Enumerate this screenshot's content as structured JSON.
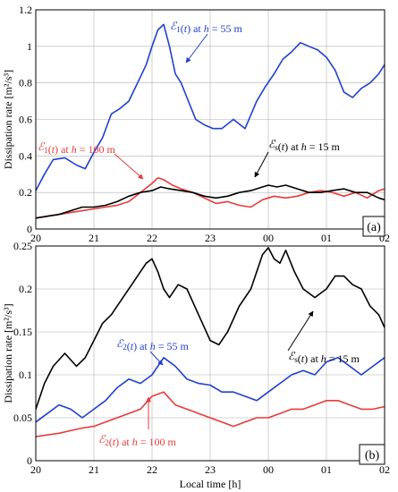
{
  "chart_data": [
    {
      "type": "line",
      "panel_label": "(a)",
      "ylabel": "Dissipation rate [m²/s³]",
      "x_ticks": [
        "20",
        "21",
        "22",
        "23",
        "00",
        "01",
        "02"
      ],
      "xlim": [
        20,
        26
      ],
      "ylim": [
        0,
        1.2
      ],
      "y_ticks": [
        "0",
        "0.2",
        "0.4",
        "0.6",
        "0.8",
        "1",
        "1.2"
      ],
      "grid": true,
      "series": [
        {
          "color": "#1f3fcf",
          "x": [
            20.0,
            20.15,
            20.3,
            20.5,
            20.7,
            20.85,
            21.0,
            21.15,
            21.3,
            21.45,
            21.6,
            21.75,
            21.9,
            22.0,
            22.1,
            22.2,
            22.3,
            22.4,
            22.5,
            22.6,
            22.75,
            22.9,
            23.05,
            23.2,
            23.4,
            23.6,
            23.8,
            23.95,
            24.1,
            24.25,
            24.4,
            24.55,
            24.7,
            24.85,
            25.0,
            25.15,
            25.3,
            25.45,
            25.6,
            25.75,
            25.9,
            26.0
          ],
          "y": [
            0.21,
            0.3,
            0.38,
            0.39,
            0.35,
            0.33,
            0.42,
            0.5,
            0.63,
            0.66,
            0.7,
            0.8,
            0.9,
            1.0,
            1.09,
            1.12,
            1.0,
            0.85,
            0.8,
            0.72,
            0.6,
            0.57,
            0.55,
            0.55,
            0.6,
            0.55,
            0.7,
            0.78,
            0.85,
            0.93,
            0.97,
            1.02,
            1.0,
            0.98,
            0.94,
            0.87,
            0.75,
            0.72,
            0.77,
            0.8,
            0.85,
            0.9
          ]
        },
        {
          "color": "#e83a3a",
          "x": [
            20.0,
            20.2,
            20.4,
            20.6,
            20.8,
            21.0,
            21.2,
            21.4,
            21.6,
            21.8,
            22.0,
            22.1,
            22.2,
            22.35,
            22.5,
            22.7,
            22.9,
            23.1,
            23.3,
            23.5,
            23.7,
            23.9,
            24.1,
            24.3,
            24.5,
            24.7,
            24.9,
            25.1,
            25.3,
            25.5,
            25.7,
            25.9,
            26.0
          ],
          "y": [
            0.06,
            0.07,
            0.08,
            0.09,
            0.1,
            0.11,
            0.12,
            0.13,
            0.15,
            0.2,
            0.25,
            0.28,
            0.27,
            0.24,
            0.22,
            0.2,
            0.17,
            0.14,
            0.15,
            0.13,
            0.12,
            0.16,
            0.18,
            0.17,
            0.18,
            0.2,
            0.21,
            0.2,
            0.18,
            0.2,
            0.17,
            0.21,
            0.22
          ]
        },
        {
          "color": "#000000",
          "x": [
            20.0,
            20.2,
            20.4,
            20.6,
            20.8,
            21.0,
            21.2,
            21.4,
            21.6,
            21.8,
            22.0,
            22.15,
            22.3,
            22.5,
            22.7,
            22.9,
            23.1,
            23.3,
            23.5,
            23.7,
            23.9,
            24.0,
            24.15,
            24.3,
            24.5,
            24.7,
            24.9,
            25.1,
            25.3,
            25.5,
            25.7,
            25.9,
            26.0
          ],
          "y": [
            0.06,
            0.07,
            0.08,
            0.1,
            0.12,
            0.12,
            0.13,
            0.15,
            0.18,
            0.2,
            0.21,
            0.23,
            0.22,
            0.21,
            0.2,
            0.18,
            0.17,
            0.18,
            0.2,
            0.21,
            0.23,
            0.24,
            0.23,
            0.24,
            0.22,
            0.2,
            0.2,
            0.21,
            0.22,
            0.2,
            0.2,
            0.17,
            0.16
          ]
        }
      ],
      "annotations": [
        {
          "prefix": "ℰ",
          "sub": "1",
          "mid": "(",
          "italic": "t",
          "rest": ") at ",
          "h": "h",
          "eq": " = 55 m",
          "color": "#1f3fcf"
        },
        {
          "prefix": "ℰ",
          "sub": "1",
          "mid": "(",
          "italic": "t",
          "rest": ") at ",
          "h": "h",
          "eq": " = 100 m",
          "color": "#e83a3a"
        },
        {
          "prefix": "ℰ",
          "sub": "s",
          "mid": "(",
          "italic": "t",
          "rest": ") at ",
          "h": "h",
          "eq": " = 15 m",
          "color": "#000000"
        }
      ]
    },
    {
      "type": "line",
      "panel_label": "(b)",
      "ylabel": "Dissipation rate [m²/s³]",
      "xlabel": "Local time [h]",
      "x_ticks": [
        "20",
        "21",
        "22",
        "23",
        "00",
        "01",
        "02"
      ],
      "xlim": [
        20,
        26
      ],
      "ylim": [
        0,
        0.25
      ],
      "y_ticks": [
        "0",
        "0.05",
        "0.1",
        "0.15",
        "0.2",
        "0.25"
      ],
      "grid": true,
      "series": [
        {
          "color": "#000000",
          "x": [
            20.0,
            20.15,
            20.3,
            20.5,
            20.7,
            20.85,
            21.0,
            21.15,
            21.3,
            21.5,
            21.7,
            21.9,
            22.0,
            22.1,
            22.2,
            22.3,
            22.45,
            22.6,
            22.8,
            23.0,
            23.15,
            23.3,
            23.5,
            23.7,
            23.9,
            24.0,
            24.1,
            24.2,
            24.3,
            24.45,
            24.6,
            24.8,
            25.0,
            25.15,
            25.3,
            25.45,
            25.6,
            25.75,
            25.9,
            26.0
          ],
          "y": [
            0.06,
            0.09,
            0.11,
            0.125,
            0.11,
            0.12,
            0.14,
            0.16,
            0.17,
            0.19,
            0.21,
            0.23,
            0.235,
            0.22,
            0.2,
            0.19,
            0.205,
            0.2,
            0.17,
            0.14,
            0.135,
            0.15,
            0.18,
            0.2,
            0.24,
            0.248,
            0.235,
            0.23,
            0.245,
            0.22,
            0.2,
            0.19,
            0.2,
            0.215,
            0.215,
            0.205,
            0.2,
            0.18,
            0.17,
            0.155
          ]
        },
        {
          "color": "#1f3fcf",
          "x": [
            20.0,
            20.2,
            20.4,
            20.6,
            20.8,
            21.0,
            21.2,
            21.4,
            21.6,
            21.8,
            22.0,
            22.2,
            22.4,
            22.6,
            22.8,
            23.0,
            23.2,
            23.4,
            23.6,
            23.8,
            24.0,
            24.2,
            24.4,
            24.6,
            24.8,
            25.0,
            25.2,
            25.4,
            25.6,
            25.8,
            26.0
          ],
          "y": [
            0.045,
            0.055,
            0.065,
            0.06,
            0.05,
            0.06,
            0.07,
            0.085,
            0.095,
            0.09,
            0.1,
            0.12,
            0.11,
            0.095,
            0.09,
            0.088,
            0.08,
            0.08,
            0.075,
            0.07,
            0.08,
            0.09,
            0.1,
            0.105,
            0.1,
            0.115,
            0.12,
            0.11,
            0.1,
            0.11,
            0.12
          ]
        },
        {
          "color": "#e83a3a",
          "x": [
            20.0,
            20.2,
            20.4,
            20.6,
            20.8,
            21.0,
            21.2,
            21.4,
            21.6,
            21.8,
            22.0,
            22.2,
            22.4,
            22.6,
            22.8,
            23.0,
            23.2,
            23.4,
            23.6,
            23.8,
            24.0,
            24.2,
            24.4,
            24.6,
            24.8,
            25.0,
            25.2,
            25.4,
            25.6,
            25.8,
            26.0
          ],
          "y": [
            0.028,
            0.03,
            0.032,
            0.035,
            0.038,
            0.04,
            0.045,
            0.05,
            0.055,
            0.06,
            0.075,
            0.08,
            0.065,
            0.06,
            0.055,
            0.05,
            0.045,
            0.04,
            0.045,
            0.05,
            0.05,
            0.055,
            0.06,
            0.06,
            0.065,
            0.07,
            0.07,
            0.065,
            0.06,
            0.06,
            0.063
          ]
        }
      ],
      "annotations": [
        {
          "prefix": "ℰ",
          "sub": "s",
          "mid": "(",
          "italic": "t",
          "rest": ") at ",
          "h": "h",
          "eq": " = 15 m",
          "color": "#000000"
        },
        {
          "prefix": "ℰ",
          "sub": "2",
          "mid": "(",
          "italic": "t",
          "rest": ") at ",
          "h": "h",
          "eq": " = 55 m",
          "color": "#1f3fcf"
        },
        {
          "prefix": "ℰ",
          "sub": "2",
          "mid": "(",
          "italic": "t",
          "rest": ") at ",
          "h": "h",
          "eq": " = 100 m",
          "color": "#e83a3a"
        }
      ]
    }
  ]
}
